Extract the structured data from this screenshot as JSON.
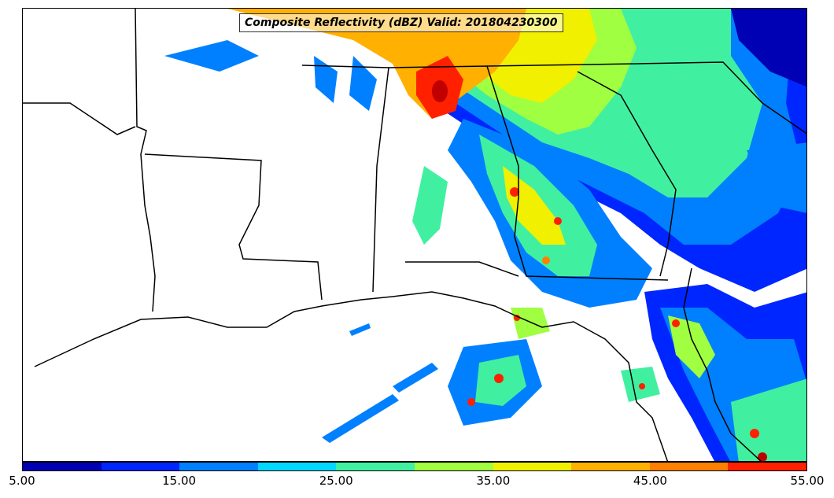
{
  "title": "Composite Reflectivity (dBZ) Valid: 201804230300",
  "colorbar": {
    "tick_labels": [
      "5.00",
      "15.00",
      "25.00",
      "35.00",
      "45.00",
      "55.00"
    ],
    "colors": [
      "#0000b4",
      "#0026ff",
      "#0080ff",
      "#00d8ff",
      "#40f0a0",
      "#a0ff40",
      "#f0f000",
      "#ffb000",
      "#ff8000",
      "#ff2000",
      "#c00000"
    ]
  },
  "chart_data": {
    "type": "heatmap",
    "title": "Composite Reflectivity (dBZ) Valid: 201804230300",
    "colorbar_range": [
      5,
      55
    ],
    "colorbar_ticks": [
      5,
      15,
      25,
      35,
      45,
      55
    ],
    "levels": [
      5,
      10,
      15,
      20,
      25,
      30,
      35,
      40,
      45,
      50,
      55
    ]
  }
}
